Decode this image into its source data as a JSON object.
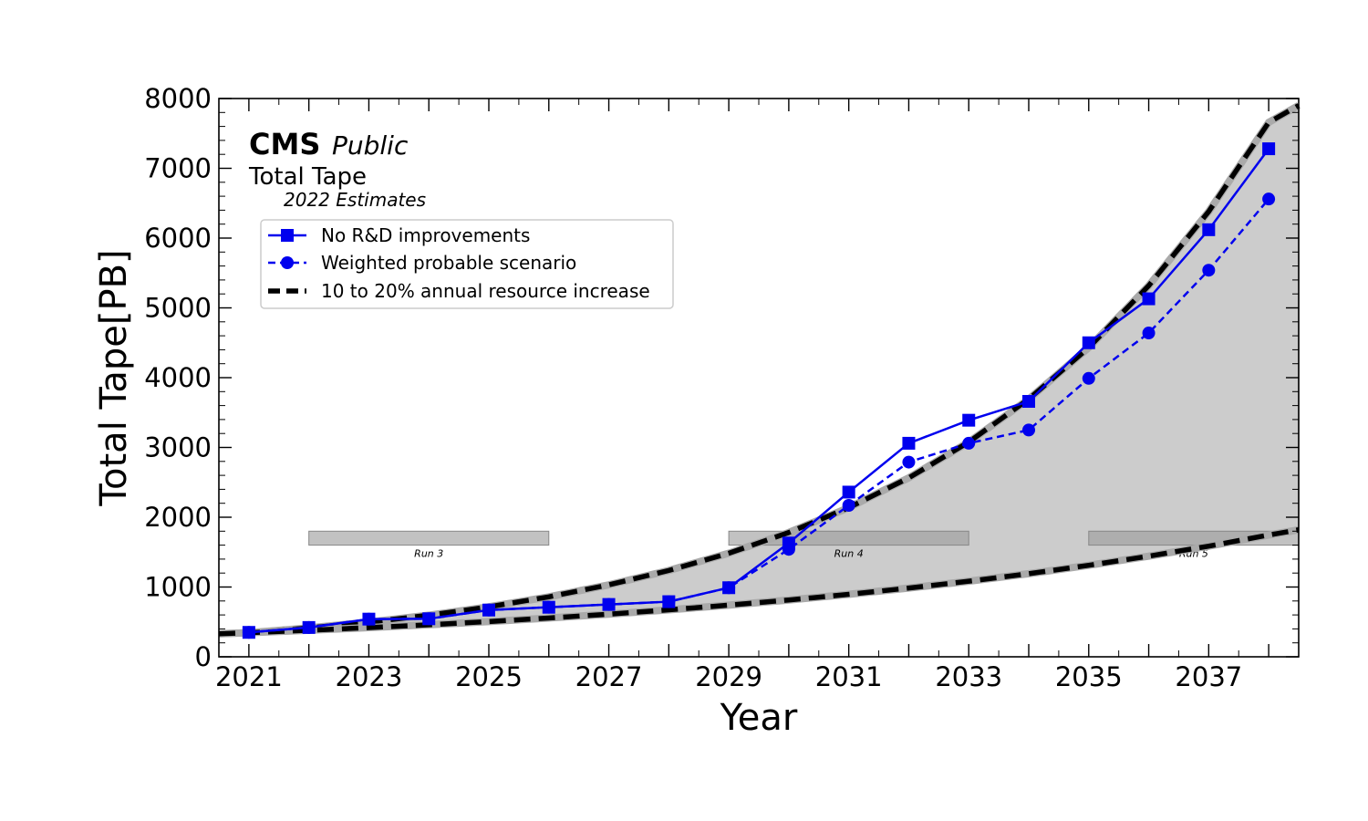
{
  "chart_data": {
    "type": "line",
    "title": "",
    "xlabel": "Year",
    "ylabel": "Total Tape[PB]",
    "xlim": [
      2020.5,
      2038.5
    ],
    "ylim": [
      0,
      8000
    ],
    "xticks_major": [
      2021,
      2023,
      2025,
      2027,
      2029,
      2031,
      2033,
      2035,
      2037
    ],
    "xtick_labels": [
      "2021",
      "2023",
      "2025",
      "2027",
      "2029",
      "2031",
      "2033",
      "2035",
      "2037"
    ],
    "yticks_major": [
      0,
      1000,
      2000,
      3000,
      4000,
      5000,
      6000,
      7000,
      8000
    ],
    "ytick_labels": [
      "0",
      "1000",
      "2000",
      "3000",
      "4000",
      "5000",
      "6000",
      "7000",
      "8000"
    ],
    "annotations": {
      "experiment": "CMS",
      "status": "Public",
      "subtitle": "Total Tape",
      "note": "2022 Estimates"
    },
    "legend_position": "upper-left",
    "series": [
      {
        "name": "No R&D improvements",
        "style": "solid",
        "marker": "square",
        "color": "#0000ee",
        "x": [
          2021,
          2022,
          2023,
          2024,
          2025,
          2026,
          2027,
          2028,
          2029,
          2030,
          2031,
          2032,
          2033,
          2034,
          2035,
          2036,
          2037,
          2038
        ],
        "values": [
          350,
          420,
          540,
          545,
          670,
          710,
          750,
          790,
          990,
          1630,
          2360,
          3060,
          3390,
          3660,
          4500,
          5130,
          6120,
          7280
        ]
      },
      {
        "name": "Weighted probable scenario",
        "style": "dashed",
        "marker": "circle",
        "color": "#0000ee",
        "x": [
          2021,
          2022,
          2023,
          2024,
          2025,
          2026,
          2027,
          2028,
          2029,
          2030,
          2031,
          2032,
          2033,
          2034,
          2035,
          2036,
          2037,
          2038
        ],
        "values": [
          350,
          420,
          540,
          545,
          670,
          710,
          750,
          790,
          990,
          1540,
          2170,
          2790,
          3060,
          3250,
          3990,
          4640,
          5540,
          6560
        ]
      },
      {
        "name": "10 to 20% annual resource increase",
        "style": "thick-dashed",
        "color": "#000000",
        "band": {
          "x": [
            2020.5,
            2021,
            2022,
            2023,
            2024,
            2025,
            2026,
            2027,
            2028,
            2029,
            2030,
            2031,
            2032,
            2033,
            2034,
            2035,
            2036,
            2037,
            2038,
            2038.5
          ],
          "upper": [
            330,
            345,
            414,
            497,
            596,
            716,
            859,
            1031,
            1237,
            1484,
            1781,
            2137,
            2564,
            3077,
            3693,
            4431,
            5318,
            6381,
            7658,
            7900
          ],
          "lower": [
            330,
            345,
            380,
            418,
            459,
            505,
            556,
            611,
            673,
            740,
            814,
            895,
            985,
            1083,
            1191,
            1311,
            1442,
            1586,
            1745,
            1820
          ]
        }
      }
    ],
    "runs": [
      {
        "label": "Run 3",
        "start": 2022,
        "end": 2026
      },
      {
        "label": "Run 4",
        "start": 2029,
        "end": 2033
      },
      {
        "label": "Run 5",
        "start": 2035,
        "end": 2038.5
      }
    ],
    "run_bar_range": [
      1600,
      1800
    ],
    "colors": {
      "series_blue": "#0000ee",
      "band_fill": "#cccccc",
      "run_bar": "#999999",
      "envelope": "#000000"
    }
  }
}
